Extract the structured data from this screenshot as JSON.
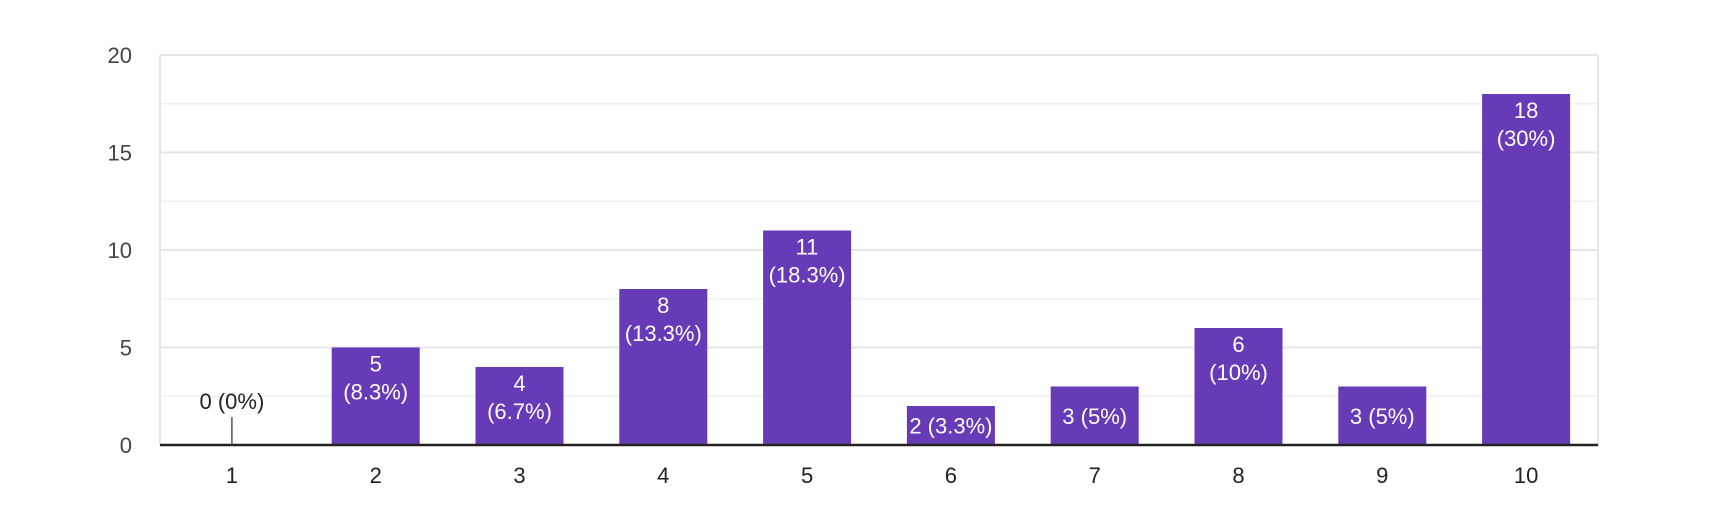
{
  "chart_data": {
    "type": "bar",
    "categories": [
      "1",
      "2",
      "3",
      "4",
      "5",
      "6",
      "7",
      "8",
      "9",
      "10"
    ],
    "values": [
      0,
      5,
      4,
      8,
      11,
      2,
      3,
      6,
      3,
      18
    ],
    "data_labels": [
      "0 (0%)",
      "5 (8.3%)",
      "4 (6.7%)",
      "8 (13.3%)",
      "11 (18.3%)",
      "2 (3.3%)",
      "3 (5%)",
      "6 (10%)",
      "3 (5%)",
      "18 (30%)"
    ],
    "ylim": [
      0,
      20
    ],
    "yticks": [
      "0",
      "5",
      "10",
      "15",
      "20"
    ],
    "title": "",
    "xlabel": "",
    "ylabel": "",
    "grid": true,
    "bar_color": "#673ab7",
    "gridline_color": "#e6e6e6",
    "axis_color": "#222222"
  }
}
